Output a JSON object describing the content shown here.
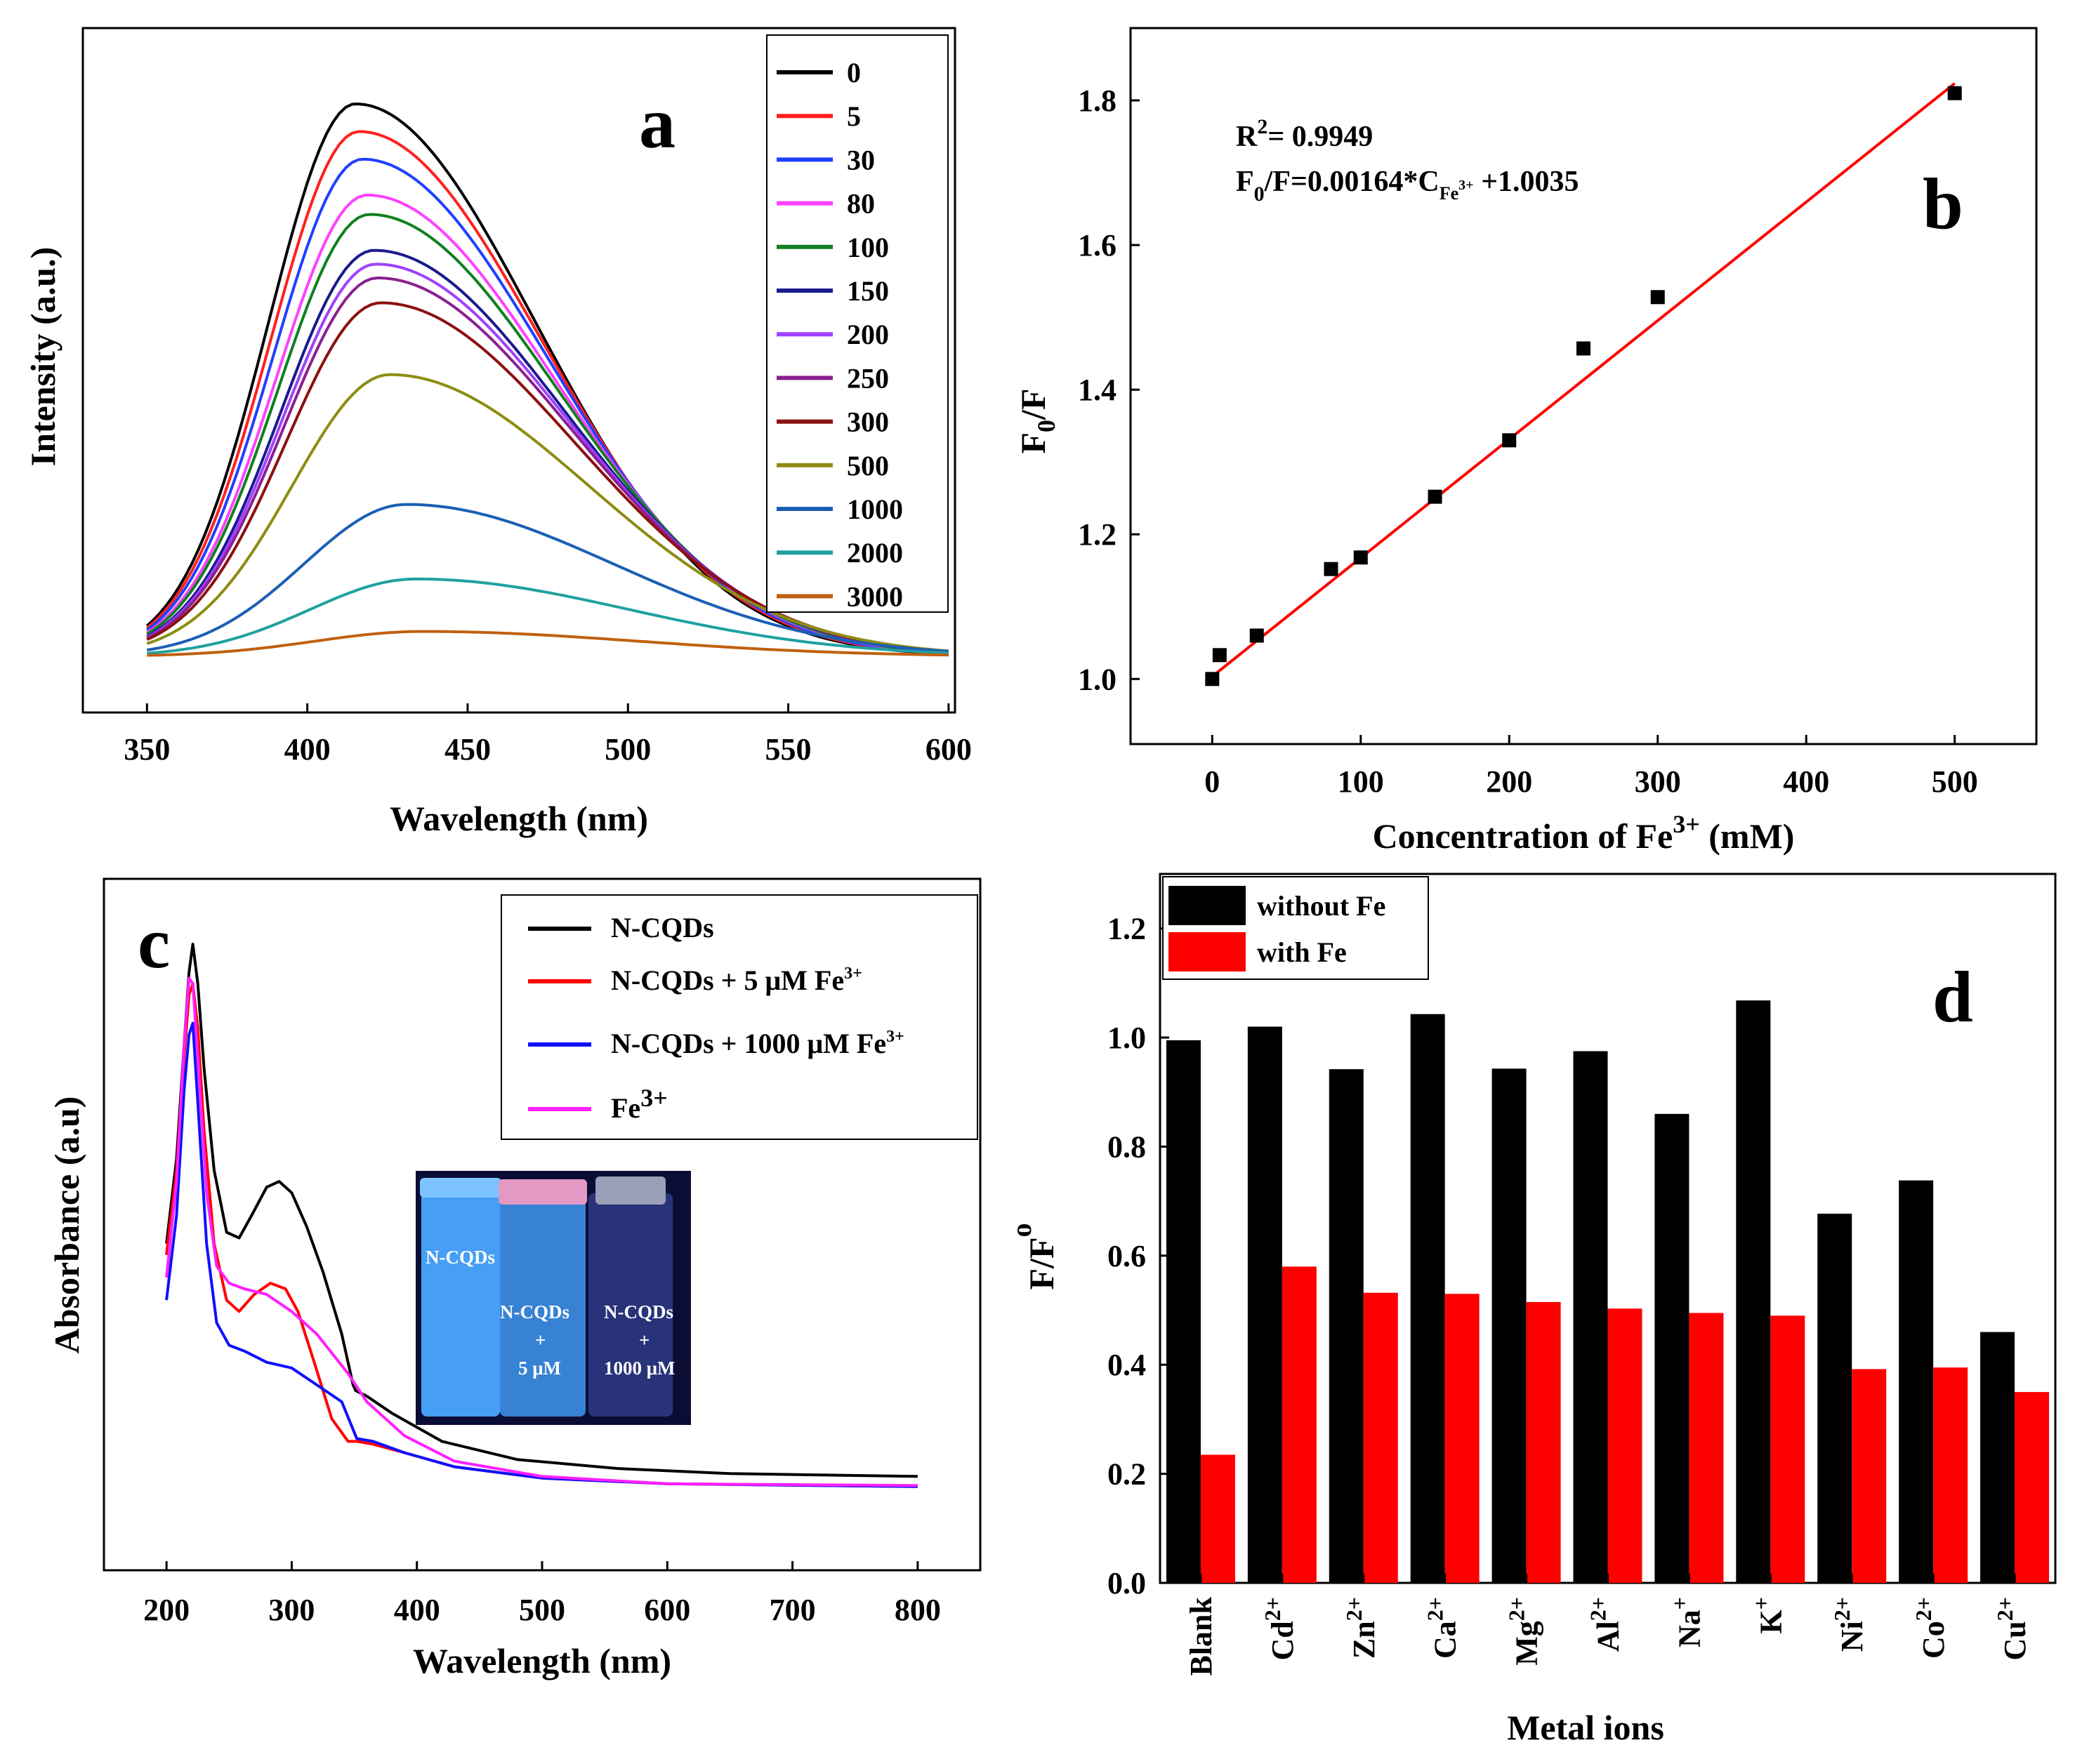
{
  "chart_data": [
    {
      "panel": "a",
      "type": "line",
      "panel_label": "a",
      "xlabel": "Wavelength (nm)",
      "ylabel": "Intensity (a.u.)",
      "xlim": [
        330,
        602
      ],
      "ylim": [
        0,
        1.1
      ],
      "x_ticks": [
        "350",
        "400",
        "450",
        "500",
        "550",
        "600"
      ],
      "legend_title": "",
      "series": [
        {
          "name": "0",
          "color": "#000000",
          "peak": 1.0
        },
        {
          "name": "5",
          "color": "#ff2020",
          "peak": 0.95
        },
        {
          "name": "30",
          "color": "#2040ff",
          "peak": 0.9
        },
        {
          "name": "80",
          "color": "#ff40ff",
          "peak": 0.835
        },
        {
          "name": "100",
          "color": "#108020",
          "peak": 0.8
        },
        {
          "name": "150",
          "color": "#1a1a8c",
          "peak": 0.735
        },
        {
          "name": "200",
          "color": "#a040ff",
          "peak": 0.71
        },
        {
          "name": "250",
          "color": "#8a2090",
          "peak": 0.685
        },
        {
          "name": "300",
          "color": "#8c1010",
          "peak": 0.64
        },
        {
          "name": "500",
          "color": "#8c8c10",
          "peak": 0.51
        },
        {
          "name": "1000",
          "color": "#1a5fb4",
          "peak": 0.275
        },
        {
          "name": "2000",
          "color": "#20a0a0",
          "peak": 0.14
        },
        {
          "name": "3000",
          "color": "#c06010",
          "peak": 0.045
        }
      ]
    },
    {
      "panel": "b",
      "type": "scatter",
      "panel_label": "b",
      "xlabel_main": "Concentration of Fe",
      "xlabel_sup": "3+",
      "xlabel_end": " (mM)",
      "ylabel_main": "F",
      "ylabel_sub": "0",
      "ylabel_end": "/F",
      "xlim": [
        -55,
        555
      ],
      "ylim": [
        0.91,
        1.9
      ],
      "x_ticks": [
        "0",
        "100",
        "200",
        "300",
        "400",
        "500"
      ],
      "y_ticks": [
        "1.0",
        "1.2",
        "1.4",
        "1.6",
        "1.8"
      ],
      "x": [
        0,
        5,
        30,
        80,
        100,
        150,
        200,
        250,
        300,
        500
      ],
      "y": [
        1.0,
        1.033,
        1.06,
        1.152,
        1.168,
        1.252,
        1.33,
        1.457,
        1.528,
        1.81
      ],
      "fit": {
        "slope": 0.00164,
        "intercept": 1.0035,
        "x_range": [
          0,
          500
        ],
        "color": "#ff0000"
      },
      "r2_main": "R",
      "r2_sup": "2",
      "r2_end": "= 0.9949",
      "eq_a": "F",
      "eq_sub0": "0",
      "eq_b": "/F=0.00164*C",
      "eq_sub": "Fe",
      "eq_subsup": "3+",
      "eq_c": " +1.0035"
    },
    {
      "panel": "c",
      "type": "line",
      "panel_label": "c",
      "xlabel": "Wavelength (nm)",
      "ylabel": "Absorbance (a.u)",
      "xlim": [
        150,
        850
      ],
      "ylim": [
        0,
        1.0
      ],
      "x_ticks": [
        "200",
        "300",
        "400",
        "500",
        "600",
        "700",
        "800"
      ],
      "legend": [
        {
          "name": "N-CQDs",
          "color": "#000000"
        },
        {
          "name": "N-CQDs + 5 μM Fe",
          "sup": "3+",
          "color": "#ff0000"
        },
        {
          "name": "N-CQDs + 1000 μM Fe",
          "sup": "3+",
          "color": "#1010ff"
        },
        {
          "name": "Fe",
          "sup": "3+",
          "color": "#ff20ff"
        }
      ],
      "series": [
        {
          "name": "N-CQDs",
          "color": "#000000",
          "x": [
            200,
            208,
            214,
            218,
            221,
            225,
            230,
            238,
            248,
            258,
            268,
            280,
            290,
            300,
            312,
            325,
            340,
            349,
            351,
            360,
            380,
            420,
            480,
            560,
            650,
            800
          ],
          "y": [
            0.47,
            0.62,
            0.82,
            0.95,
            1.0,
            0.93,
            0.78,
            0.6,
            0.49,
            0.48,
            0.52,
            0.57,
            0.58,
            0.56,
            0.5,
            0.42,
            0.31,
            0.22,
            0.21,
            0.2,
            0.17,
            0.12,
            0.088,
            0.072,
            0.063,
            0.058
          ]
        },
        {
          "name": "N-CQDs + 5 μM Fe3+",
          "color": "#ff0000",
          "x": [
            200,
            208,
            214,
            218,
            221,
            225,
            230,
            238,
            248,
            258,
            270,
            283,
            295,
            305,
            318,
            332,
            345,
            352,
            365,
            390,
            430,
            500,
            600,
            800
          ],
          "y": [
            0.45,
            0.6,
            0.8,
            0.91,
            0.93,
            0.85,
            0.67,
            0.47,
            0.37,
            0.35,
            0.38,
            0.4,
            0.39,
            0.35,
            0.26,
            0.16,
            0.12,
            0.12,
            0.115,
            0.1,
            0.075,
            0.055,
            0.045,
            0.04
          ]
        },
        {
          "name": "N-CQDs + 1000 μM Fe3+",
          "color": "#1010ff",
          "x": [
            200,
            208,
            214,
            218,
            221,
            225,
            232,
            240,
            250,
            262,
            280,
            300,
            320,
            340,
            352,
            365,
            390,
            430,
            500,
            600,
            800
          ],
          "y": [
            0.37,
            0.52,
            0.74,
            0.84,
            0.86,
            0.72,
            0.47,
            0.33,
            0.29,
            0.28,
            0.26,
            0.25,
            0.22,
            0.19,
            0.125,
            0.12,
            0.1,
            0.075,
            0.055,
            0.045,
            0.04
          ]
        },
        {
          "name": "Fe3+",
          "color": "#ff20ff",
          "x": [
            200,
            208,
            214,
            218,
            221,
            225,
            232,
            240,
            250,
            262,
            280,
            300,
            320,
            345,
            360,
            390,
            430,
            500,
            600,
            800
          ],
          "y": [
            0.41,
            0.58,
            0.82,
            0.94,
            0.93,
            0.8,
            0.56,
            0.43,
            0.4,
            0.39,
            0.38,
            0.35,
            0.31,
            0.24,
            0.19,
            0.13,
            0.085,
            0.058,
            0.045,
            0.042
          ]
        }
      ],
      "inset": {
        "vials": [
          {
            "label": "N-CQDs",
            "color": "#4aa8ff"
          },
          {
            "label": "N-CQDs + 5 μM",
            "color": "#4ea0f0"
          },
          {
            "label": "N-CQDs + 1000 μM",
            "color": "#2c3a8c"
          }
        ],
        "labels": [
          [
            "N-CQDs"
          ],
          [
            "N-CQDs",
            "+",
            "5 μM"
          ],
          [
            "N-CQDs",
            "+",
            "1000 μM"
          ]
        ]
      }
    },
    {
      "panel": "d",
      "type": "bar",
      "panel_label": "d",
      "xlabel": "Metal ions",
      "ylabel_main": "F/F",
      "ylabel_sub": "o",
      "ylim": [
        0,
        1.3
      ],
      "y_ticks": [
        "0.0",
        "0.2",
        "0.4",
        "0.6",
        "0.8",
        "1.0",
        "1.2"
      ],
      "categories": [
        {
          "base": "Blank",
          "sup": ""
        },
        {
          "base": "Cd",
          "sup": "2+"
        },
        {
          "base": "Zn",
          "sup": "2+"
        },
        {
          "base": "Ca",
          "sup": "2+"
        },
        {
          "base": "Mg",
          "sup": "2+"
        },
        {
          "base": "Al",
          "sup": "2+"
        },
        {
          "base": "Na",
          "sup": "+"
        },
        {
          "base": "K",
          "sup": "+"
        },
        {
          "base": "Ni",
          "sup": "2+"
        },
        {
          "base": "Co",
          "sup": "2+"
        },
        {
          "base": "Cu",
          "sup": "2+"
        }
      ],
      "series": [
        {
          "name": "without Fe",
          "color": "#000000",
          "values": [
            0.995,
            1.02,
            0.942,
            1.043,
            0.943,
            0.975,
            0.86,
            1.068,
            0.677,
            0.738,
            0.46
          ]
        },
        {
          "name": "with Fe",
          "color": "#ff0000",
          "values": [
            0.235,
            0.58,
            0.532,
            0.53,
            0.515,
            0.503,
            0.495,
            0.49,
            0.392,
            0.395,
            0.35
          ]
        }
      ]
    }
  ]
}
